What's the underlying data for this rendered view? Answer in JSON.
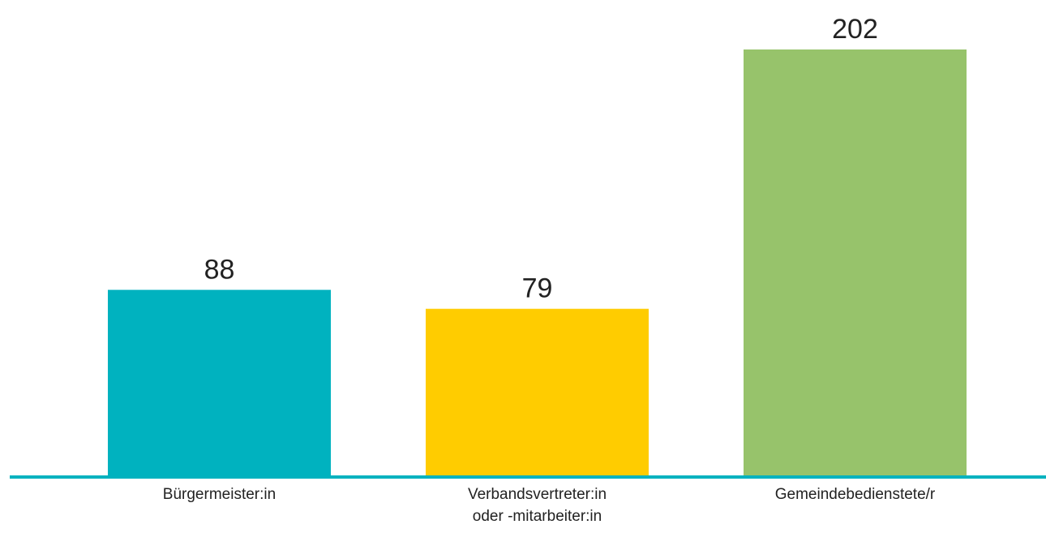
{
  "chart_data": {
    "type": "bar",
    "categories": [
      [
        "Bürgermeister:in"
      ],
      [
        "Verbandsvertreter:in",
        "oder -mitarbeiter:in"
      ],
      [
        "Gemeindebedienstete/r"
      ]
    ],
    "values": [
      88,
      79,
      202
    ],
    "data_labels": [
      "88",
      "79",
      "202"
    ],
    "colors": [
      "#00b2bf",
      "#ffcc00",
      "#97c36b"
    ],
    "axis_color": "#00b2bf",
    "ylim": [
      0,
      202
    ],
    "grid": false,
    "legend": "none",
    "title": "",
    "xlabel": "",
    "ylabel": ""
  }
}
